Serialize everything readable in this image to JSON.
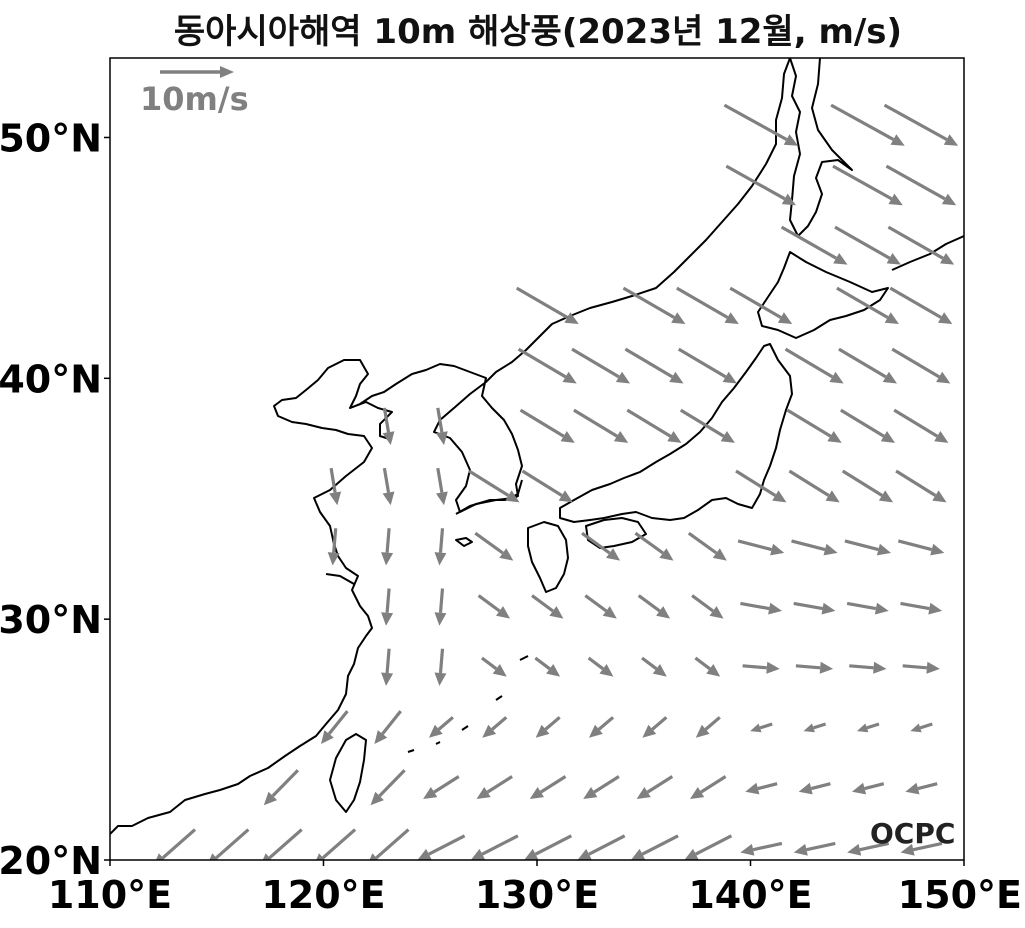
{
  "title": "동아시아해역 10m 해상풍(2023년 12월, m/s)",
  "watermark": "OCPC",
  "reference_vector": {
    "label": "10m/s",
    "value": 10
  },
  "colors": {
    "arrow": "#808080",
    "coast": "#000000",
    "frame": "#000000"
  },
  "map": {
    "lon_range": [
      110,
      150
    ],
    "lat_range": [
      20,
      53.3
    ],
    "lon_ticks": [
      {
        "value": 110,
        "label": "110°E"
      },
      {
        "value": 120,
        "label": "120°E"
      },
      {
        "value": 130,
        "label": "130°E"
      },
      {
        "value": 140,
        "label": "140°E"
      },
      {
        "value": 150,
        "label": "150°E"
      }
    ],
    "lat_ticks": [
      {
        "value": 20,
        "label": "20°N"
      },
      {
        "value": 30,
        "label": "30°N"
      },
      {
        "value": 40,
        "label": "40°N"
      },
      {
        "value": 50,
        "label": "50°N"
      }
    ]
  },
  "wind_field": {
    "units": "m/s",
    "grid": {
      "lon_start": 110.5,
      "lon_end": 149.5,
      "lon_step": 2.5,
      "lat_start": 20.5,
      "lat_end": 52.5,
      "lat_step": 2.5
    }
  }
}
